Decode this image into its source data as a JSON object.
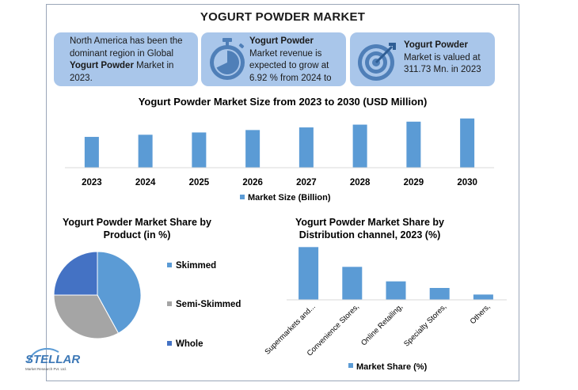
{
  "title": "YOGURT POWDER MARKET",
  "cards": [
    {
      "line1": "North America has been the",
      "line2": "dominant region in Global",
      "bold": "Yogurt Powder",
      "rest": " Market in",
      "line4": "2023."
    },
    {
      "title": "Yogurt Powder",
      "line1": "Market revenue is",
      "line2": "expected to grow at",
      "line3": "6.92 % from 2024 to",
      "icon": "stopwatch-icon"
    },
    {
      "title": "Yogurt Powder",
      "line1": "Market is valued at",
      "line2": "311.73 Mn. in 2023",
      "icon": "target-icon"
    }
  ],
  "colors": {
    "bar": "#5b9bd5",
    "card": "#a9c6ea",
    "icon": "#4f7fb8",
    "skimmed": "#5b9bd5",
    "semi": "#a5a5a5",
    "whole": "#4472c4"
  },
  "chart_data": [
    {
      "type": "bar",
      "title": "Yogurt Powder Market Size from 2023 to 2030 (USD Million)",
      "categories": [
        "2023",
        "2024",
        "2025",
        "2026",
        "2027",
        "2028",
        "2029",
        "2030"
      ],
      "series": [
        {
          "name": "Market Size (Billion)",
          "values": [
            311.73,
            333.3,
            356.4,
            381.0,
            407.4,
            435.6,
            465.7,
            498.0
          ]
        }
      ],
      "ylim": [
        0,
        560
      ],
      "legend": "bottom"
    },
    {
      "type": "pie",
      "title_line1": "Yogurt Powder Market Share by",
      "title_line2": "Product (in %)",
      "labels": [
        "Skimmed",
        "Semi-Skimmed",
        "Whole"
      ],
      "values": [
        42,
        33,
        25
      ],
      "legend": "right"
    },
    {
      "type": "bar",
      "title_line1": "Yogurt Powder Market Share by",
      "title_line2": "Distribution channel, 2023 (%)",
      "categories": [
        "Supermarkets and...",
        "Convenience Stores,",
        "Online Retailing,",
        "Specialty Stores,",
        "Others,"
      ],
      "series": [
        {
          "name": "Market Share (%)",
          "values": [
            40,
            25,
            14,
            9,
            4
          ]
        }
      ],
      "ylim": [
        0,
        42
      ],
      "legend": "bottom"
    }
  ],
  "brand": {
    "name": "STELLAR",
    "sub": "Market Research Pvt. Ltd."
  }
}
